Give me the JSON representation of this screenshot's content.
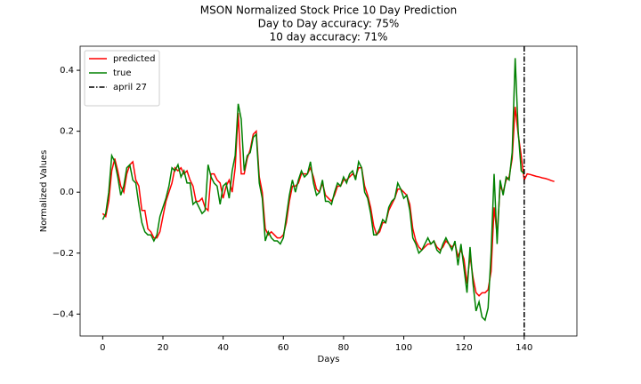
{
  "chart_data": {
    "type": "line",
    "title": "MSON Normalized Stock Price 10 Day Prediction",
    "subtitle": [
      "Day to Day accuracy: 75%",
      "10 day accuracy: 71%"
    ],
    "xlabel": "Days",
    "ylabel": "Normalized Values",
    "xlim": [
      -7.5,
      157.5
    ],
    "ylim": [
      -0.472,
      0.479
    ],
    "xticks": [
      0,
      20,
      40,
      60,
      80,
      100,
      120,
      140
    ],
    "yticks": [
      {
        "value": -0.4,
        "label": "−0.4"
      },
      {
        "value": -0.2,
        "label": "−0.2"
      },
      {
        "value": 0,
        "label": "0.0"
      },
      0.2,
      0.4
    ],
    "legend": "upper left",
    "series": [
      {
        "name": "predicted",
        "color": "#ff0000",
        "values": [
          -0.07,
          -0.08,
          -0.03,
          0.07,
          0.11,
          0.07,
          0.02,
          0.0,
          0.06,
          0.09,
          0.1,
          0.04,
          0.02,
          -0.06,
          -0.06,
          -0.12,
          -0.13,
          -0.15,
          -0.15,
          -0.13,
          -0.08,
          -0.03,
          0.0,
          0.03,
          0.08,
          0.07,
          0.08,
          0.06,
          0.07,
          0.04,
          0.02,
          -0.03,
          -0.03,
          -0.02,
          -0.05,
          -0.06,
          0.06,
          0.06,
          0.04,
          0.03,
          -0.02,
          0.02,
          0.04,
          0.0,
          0.08,
          0.26,
          0.06,
          0.06,
          0.11,
          0.14,
          0.19,
          0.2,
          0.05,
          0.0,
          -0.12,
          -0.14,
          -0.13,
          -0.14,
          -0.15,
          -0.15,
          -0.14,
          -0.1,
          -0.03,
          0.02,
          0.02,
          0.03,
          0.06,
          0.06,
          0.06,
          0.08,
          0.05,
          0.01,
          0.0,
          0.03,
          -0.01,
          -0.02,
          -0.03,
          -0.01,
          0.02,
          0.02,
          0.04,
          0.04,
          0.05,
          0.06,
          0.05,
          0.08,
          0.08,
          0.02,
          -0.01,
          -0.05,
          -0.11,
          -0.14,
          -0.13,
          -0.1,
          -0.1,
          -0.06,
          -0.04,
          -0.02,
          0.01,
          0.01,
          0.0,
          -0.01,
          -0.04,
          -0.12,
          -0.16,
          -0.18,
          -0.19,
          -0.18,
          -0.17,
          -0.17,
          -0.16,
          -0.18,
          -0.19,
          -0.18,
          -0.16,
          -0.17,
          -0.18,
          -0.17,
          -0.21,
          -0.19,
          -0.22,
          -0.3,
          -0.21,
          -0.28,
          -0.33,
          -0.34,
          -0.33,
          -0.33,
          -0.32,
          -0.26,
          -0.05,
          -0.14,
          0.02,
          0.0,
          0.04,
          0.05,
          0.11,
          0.28,
          0.19,
          0.12,
          0.04,
          0.06,
          0.058,
          0.055,
          0.052,
          0.05,
          0.047,
          0.045,
          0.042,
          0.038,
          0.035
        ]
      },
      {
        "name": "true",
        "color": "#008000",
        "values": [
          -0.09,
          -0.07,
          0.0,
          0.12,
          0.1,
          0.05,
          -0.01,
          0.02,
          0.08,
          0.09,
          0.04,
          0.03,
          -0.04,
          -0.1,
          -0.13,
          -0.14,
          -0.14,
          -0.16,
          -0.14,
          -0.08,
          -0.05,
          -0.02,
          0.02,
          0.08,
          0.07,
          0.09,
          0.05,
          0.07,
          0.03,
          0.03,
          -0.04,
          -0.03,
          -0.05,
          -0.07,
          -0.06,
          0.09,
          0.05,
          0.03,
          0.02,
          -0.04,
          0.02,
          0.03,
          -0.02,
          0.07,
          0.12,
          0.29,
          0.24,
          0.07,
          0.12,
          0.13,
          0.18,
          0.19,
          0.03,
          -0.02,
          -0.16,
          -0.13,
          -0.15,
          -0.16,
          -0.16,
          -0.17,
          -0.15,
          -0.08,
          -0.01,
          0.04,
          0.0,
          0.04,
          0.07,
          0.05,
          0.06,
          0.1,
          0.03,
          -0.01,
          0.0,
          0.04,
          -0.03,
          -0.03,
          -0.04,
          0.0,
          0.03,
          0.02,
          0.05,
          0.03,
          0.06,
          0.07,
          0.04,
          0.1,
          0.08,
          0.0,
          -0.02,
          -0.07,
          -0.14,
          -0.14,
          -0.12,
          -0.09,
          -0.1,
          -0.05,
          -0.03,
          -0.02,
          0.03,
          0.01,
          -0.02,
          -0.01,
          -0.06,
          -0.15,
          -0.17,
          -0.2,
          -0.19,
          -0.17,
          -0.15,
          -0.17,
          -0.16,
          -0.19,
          -0.2,
          -0.17,
          -0.15,
          -0.17,
          -0.19,
          -0.16,
          -0.24,
          -0.17,
          -0.25,
          -0.33,
          -0.18,
          -0.3,
          -0.39,
          -0.36,
          -0.41,
          -0.42,
          -0.38,
          -0.2,
          0.06,
          -0.17,
          0.04,
          -0.01,
          0.05,
          0.04,
          0.13,
          0.44,
          0.2,
          0.07,
          0.06
        ]
      }
    ],
    "vlines": [
      {
        "name": "april 27",
        "x": 140,
        "color": "#000000"
      }
    ]
  }
}
